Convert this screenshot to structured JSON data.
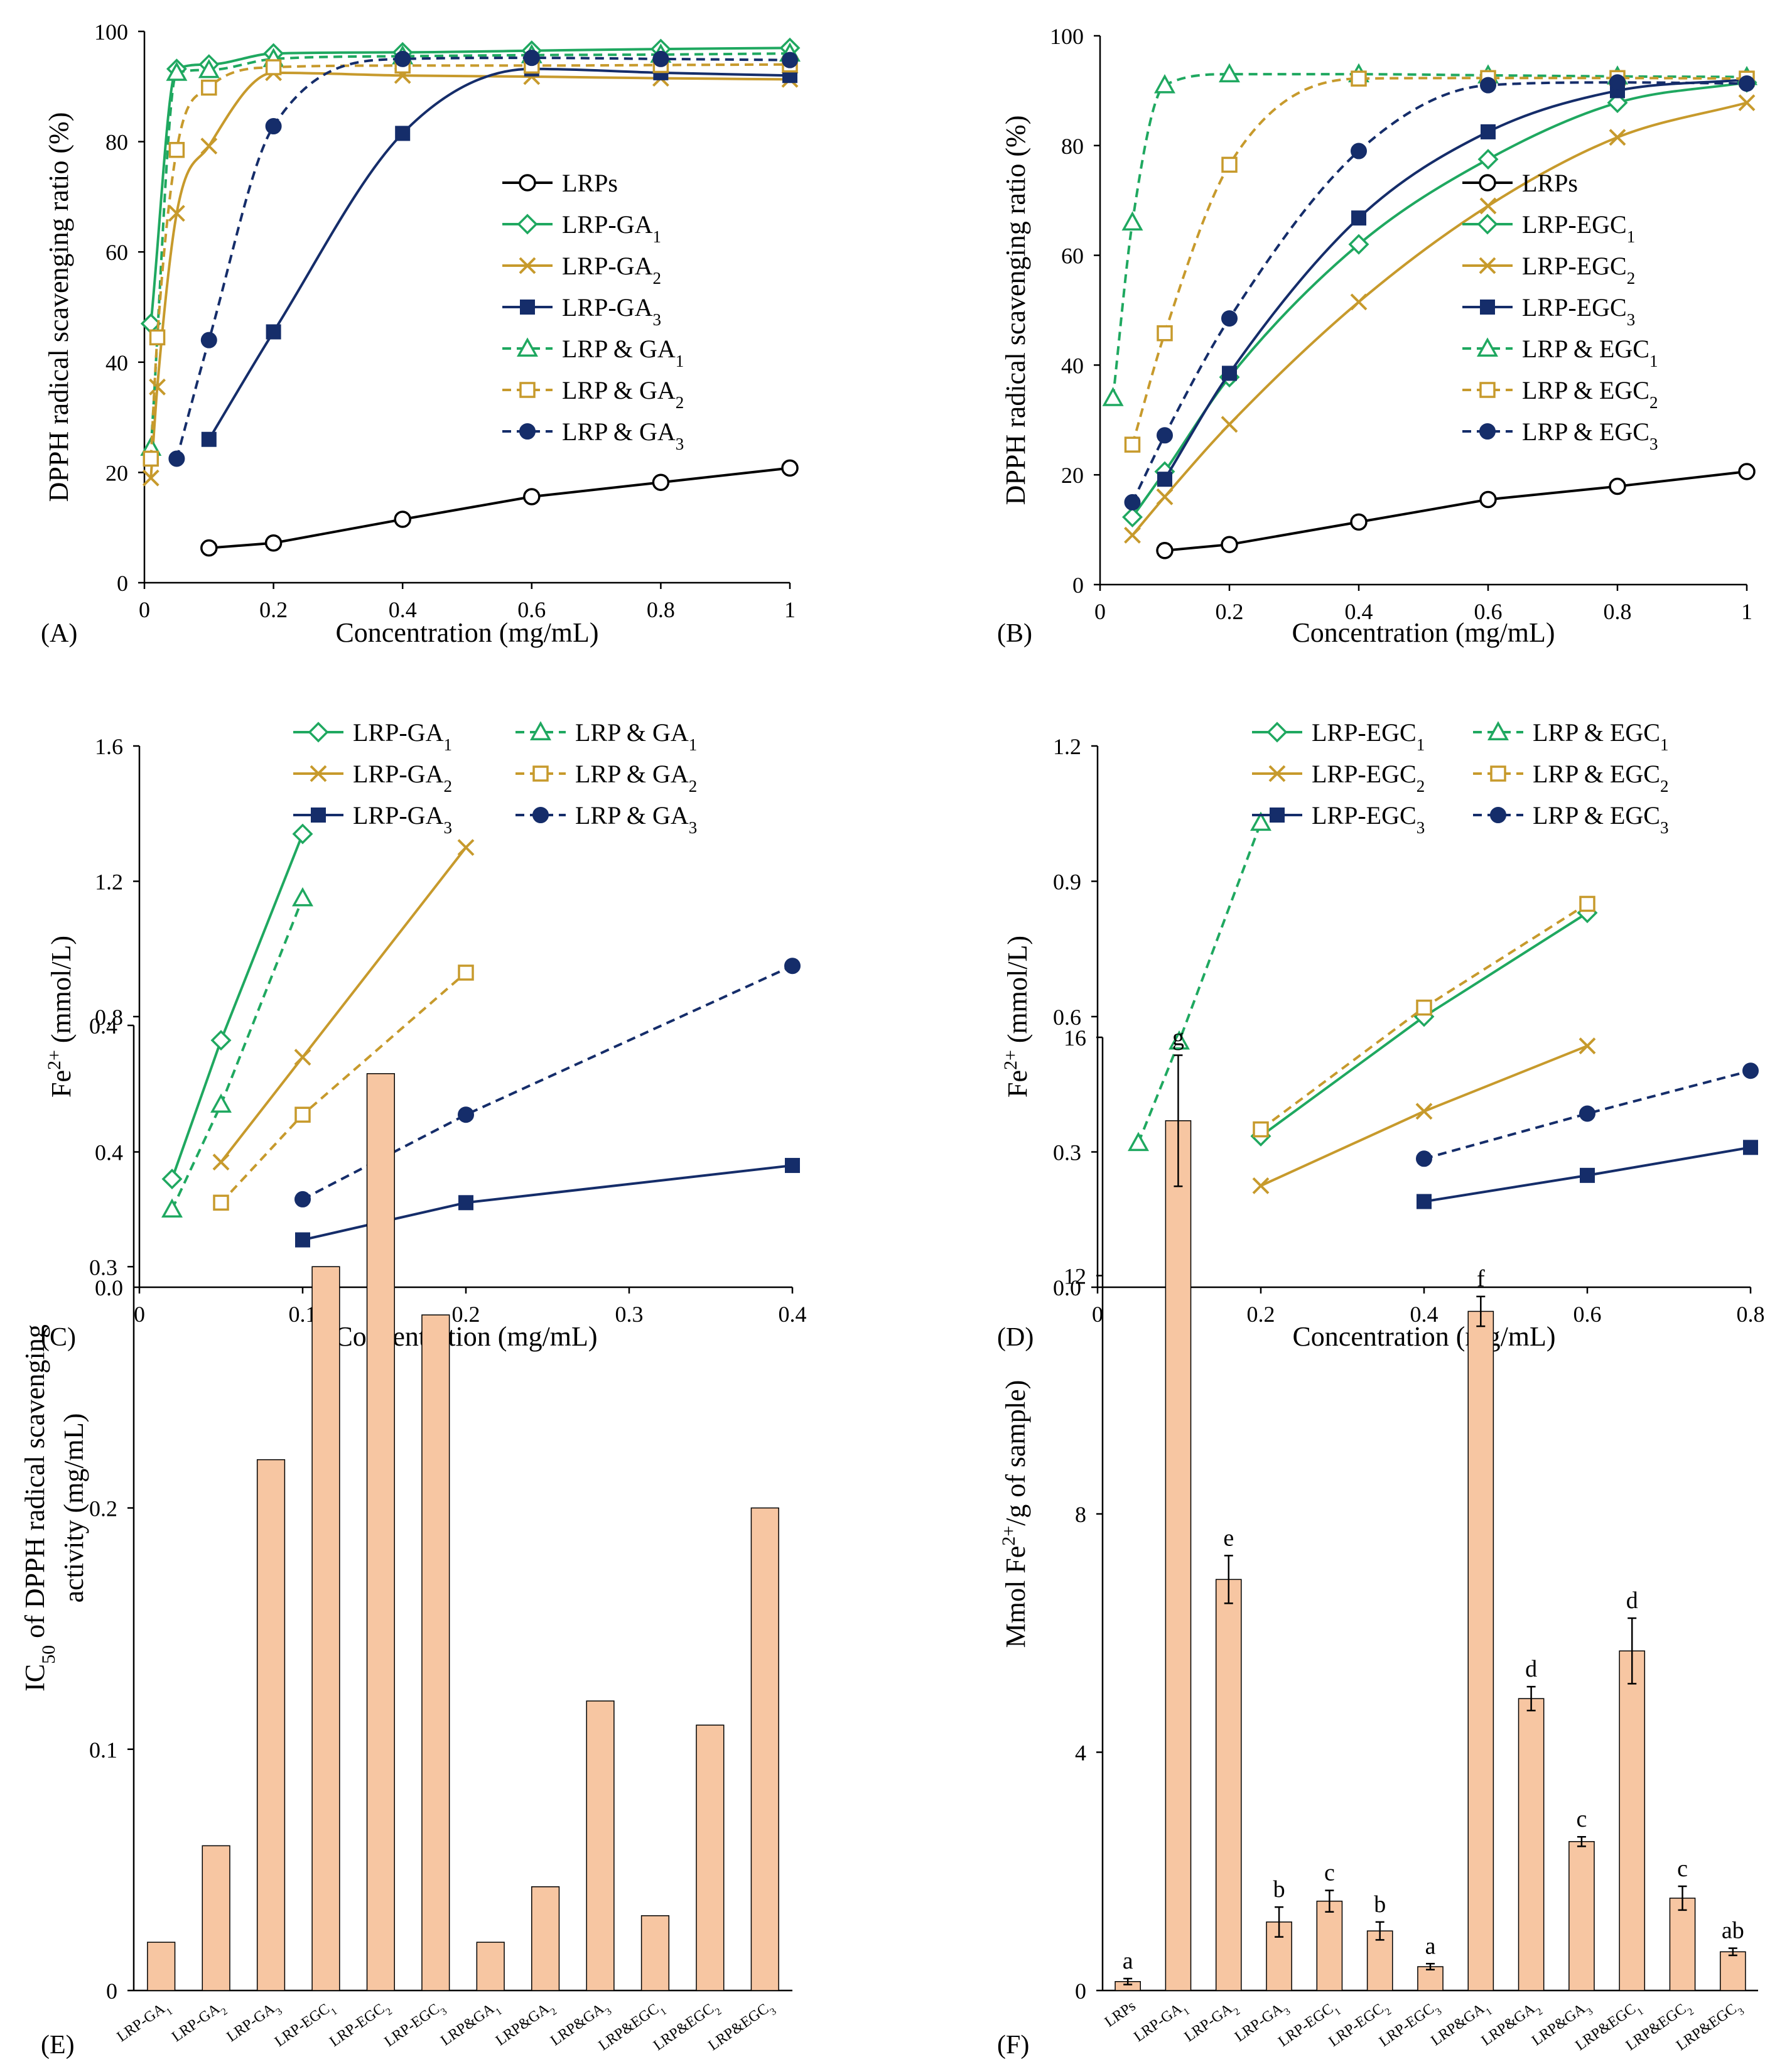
{
  "colors": {
    "black": "#000000",
    "green": "#1FA860",
    "gold": "#C79A2C",
    "navy": "#152D6A",
    "bar_fill": "#F7C6A2",
    "bar_stroke": "#000000"
  },
  "chart_data": [
    {
      "panel": "(A)",
      "type": "line",
      "xlabel": "Concentration (mg/mL)",
      "ylabel": "DPPH radical scavenging ratio (%)",
      "xlim": [
        0,
        1
      ],
      "ylim": [
        0,
        100
      ],
      "xticks": [
        "0",
        "0.2",
        "0.4",
        "0.6",
        "0.8",
        "1"
      ],
      "yticks": [
        "0",
        "20",
        "40",
        "60",
        "80",
        "100"
      ],
      "legend": "right",
      "series": [
        {
          "name": "LRPs",
          "sub": "",
          "color": "#000000",
          "dash": false,
          "marker": "circle-open",
          "curve": "linear",
          "x": [
            0.1,
            0.2,
            0.4,
            0.6,
            0.8,
            1.0
          ],
          "y": [
            6.3,
            7.2,
            11.5,
            15.6,
            18.2,
            20.8
          ]
        },
        {
          "name": "LRP-GA",
          "sub": "1",
          "color": "#1FA860",
          "dash": false,
          "marker": "diamond-open",
          "curve": "smooth",
          "x": [
            0.01,
            0.05,
            0.1,
            0.2,
            0.4,
            0.6,
            0.8,
            1.0
          ],
          "y": [
            47,
            93.2,
            94,
            96,
            96.2,
            96.5,
            96.8,
            97
          ]
        },
        {
          "name": "LRP-GA",
          "sub": "2",
          "color": "#C79A2C",
          "dash": false,
          "marker": "x",
          "curve": "smooth",
          "x": [
            0.01,
            0.02,
            0.05,
            0.1,
            0.2,
            0.4,
            0.6,
            0.8,
            1.0
          ],
          "y": [
            19,
            35.5,
            67,
            79.2,
            92.5,
            92,
            91.8,
            91.5,
            91.3
          ]
        },
        {
          "name": "LRP-GA",
          "sub": "3",
          "color": "#152D6A",
          "dash": false,
          "marker": "square",
          "curve": "smooth",
          "x": [
            0.1,
            0.2,
            0.4,
            0.6,
            0.8,
            1.0
          ],
          "y": [
            26,
            45.5,
            81.5,
            93.2,
            92.5,
            92
          ]
        },
        {
          "name": "LRP & GA",
          "sub": "1",
          "color": "#1FA860",
          "dash": true,
          "marker": "triangle-open",
          "curve": "smooth",
          "x": [
            0.01,
            0.05,
            0.1,
            0.2,
            0.4,
            0.6,
            0.8,
            1.0
          ],
          "y": [
            24.5,
            92.5,
            93,
            95,
            95.5,
            95.7,
            95.8,
            96
          ]
        },
        {
          "name": "LRP & GA",
          "sub": "2",
          "color": "#C79A2C",
          "dash": true,
          "marker": "square-open",
          "curve": "smooth",
          "x": [
            0.01,
            0.02,
            0.05,
            0.1,
            0.2,
            0.4,
            0.6,
            0.8,
            1.0
          ],
          "y": [
            22.5,
            44.5,
            78.5,
            89.8,
            93.5,
            93.8,
            93.8,
            93.9,
            94
          ]
        },
        {
          "name": "LRP & GA",
          "sub": "3",
          "color": "#152D6A",
          "dash": true,
          "marker": "circle",
          "curve": "smooth",
          "x": [
            0.05,
            0.1,
            0.2,
            0.4,
            0.6,
            0.8,
            1.0
          ],
          "y": [
            22.5,
            44,
            82.8,
            95,
            95.2,
            95,
            94.8
          ]
        }
      ]
    },
    {
      "panel": "(B)",
      "type": "line",
      "xlabel": "Concentration (mg/mL)",
      "ylabel": "DPPH radical scavenging ratio (%)",
      "xlim": [
        0,
        1
      ],
      "ylim": [
        0,
        100
      ],
      "xticks": [
        "0",
        "0.2",
        "0.4",
        "0.6",
        "0.8",
        "1"
      ],
      "yticks": [
        "0",
        "20",
        "40",
        "60",
        "80",
        "100"
      ],
      "legend": "right",
      "series": [
        {
          "name": "LRPs",
          "sub": "",
          "color": "#000000",
          "dash": false,
          "marker": "circle-open",
          "curve": "linear",
          "x": [
            0.1,
            0.2,
            0.4,
            0.6,
            0.8,
            1.0
          ],
          "y": [
            6.2,
            7.3,
            11.4,
            15.5,
            17.9,
            20.6
          ]
        },
        {
          "name": "LRP-EGC",
          "sub": "1",
          "color": "#1FA860",
          "dash": false,
          "marker": "diamond-open",
          "curve": "smooth",
          "x": [
            0.05,
            0.1,
            0.2,
            0.4,
            0.6,
            0.8,
            1.0
          ],
          "y": [
            12.3,
            20.6,
            37.8,
            62,
            77.5,
            87.8,
            91.5
          ]
        },
        {
          "name": "LRP-EGC",
          "sub": "2",
          "color": "#C79A2C",
          "dash": false,
          "marker": "x",
          "curve": "smooth",
          "x": [
            0.05,
            0.1,
            0.2,
            0.4,
            0.6,
            0.8,
            1.0
          ],
          "y": [
            9,
            16,
            29.2,
            51.5,
            69,
            81.5,
            87.8
          ]
        },
        {
          "name": "LRP-EGC",
          "sub": "3",
          "color": "#152D6A",
          "dash": false,
          "marker": "square",
          "curve": "smooth",
          "x": [
            0.1,
            0.2,
            0.4,
            0.6,
            0.8,
            1.0
          ],
          "y": [
            19.2,
            38.5,
            66.8,
            82.5,
            90,
            92
          ]
        },
        {
          "name": "LRP & EGC",
          "sub": "1",
          "color": "#1FA860",
          "dash": true,
          "marker": "triangle-open",
          "curve": "smooth",
          "x": [
            0.02,
            0.05,
            0.1,
            0.2,
            0.4,
            0.6,
            0.8,
            1.0
          ],
          "y": [
            34,
            66,
            91,
            93,
            93,
            92.8,
            92.6,
            92.5
          ]
        },
        {
          "name": "LRP & EGC",
          "sub": "2",
          "color": "#C79A2C",
          "dash": true,
          "marker": "square-open",
          "curve": "smooth",
          "x": [
            0.05,
            0.1,
            0.2,
            0.4,
            0.6,
            0.8,
            1.0
          ],
          "y": [
            25.5,
            45.8,
            76.5,
            92.2,
            92.3,
            92.3,
            92.2
          ]
        },
        {
          "name": "LRP & EGC",
          "sub": "3",
          "color": "#152D6A",
          "dash": true,
          "marker": "circle",
          "curve": "smooth",
          "x": [
            0.05,
            0.1,
            0.2,
            0.4,
            0.6,
            0.8,
            1.0
          ],
          "y": [
            15,
            27.2,
            48.5,
            79,
            91,
            91.5,
            91.3
          ]
        }
      ]
    },
    {
      "panel": "(C)",
      "type": "line",
      "xlabel": "Concentration (mg/mL)",
      "ylabel": "Fe",
      "ylabel_sup": "2+",
      "ylabel_rest": " (mmol/L)",
      "xlim": [
        0,
        0.4
      ],
      "ylim": [
        0,
        1.6
      ],
      "xticks": [
        "0",
        "0.1",
        "0.2",
        "0.3",
        "0.4"
      ],
      "yticks": [
        "0.0",
        "0.4",
        "0.8",
        "1.2",
        "1.6"
      ],
      "legend": "top",
      "series": [
        {
          "name": "LRP-GA",
          "sub": "1",
          "color": "#1FA860",
          "dash": false,
          "marker": "diamond-open",
          "curve": "linear",
          "x": [
            0.02,
            0.05,
            0.1
          ],
          "y": [
            0.32,
            0.73,
            1.34
          ]
        },
        {
          "name": "LRP-GA",
          "sub": "2",
          "color": "#C79A2C",
          "dash": false,
          "marker": "x",
          "curve": "linear",
          "x": [
            0.05,
            0.1,
            0.2
          ],
          "y": [
            0.37,
            0.68,
            1.3
          ]
        },
        {
          "name": "LRP-GA",
          "sub": "3",
          "color": "#152D6A",
          "dash": false,
          "marker": "square",
          "curve": "linear",
          "x": [
            0.1,
            0.2,
            0.4
          ],
          "y": [
            0.14,
            0.25,
            0.36
          ]
        },
        {
          "name": "LRP & GA",
          "sub": "1",
          "color": "#1FA860",
          "dash": true,
          "marker": "triangle-open",
          "curve": "linear",
          "x": [
            0.02,
            0.05,
            0.1
          ],
          "y": [
            0.23,
            0.54,
            1.15
          ]
        },
        {
          "name": "LRP & GA",
          "sub": "2",
          "color": "#C79A2C",
          "dash": true,
          "marker": "square-open",
          "curve": "linear",
          "x": [
            0.05,
            0.1,
            0.2
          ],
          "y": [
            0.25,
            0.51,
            0.93
          ]
        },
        {
          "name": "LRP & GA",
          "sub": "3",
          "color": "#152D6A",
          "dash": true,
          "marker": "circle",
          "curve": "linear",
          "x": [
            0.1,
            0.2,
            0.4
          ],
          "y": [
            0.26,
            0.51,
            0.95
          ]
        }
      ]
    },
    {
      "panel": "(D)",
      "type": "line",
      "xlabel": "Concentration (mg/mL)",
      "ylabel": "Fe",
      "ylabel_sup": "2+",
      "ylabel_rest": " (mmol/L)",
      "xlim": [
        0,
        0.8
      ],
      "ylim": [
        0,
        1.2
      ],
      "xticks": [
        "0",
        "0.2",
        "0.4",
        "0.6",
        "0.8"
      ],
      "yticks": [
        "0.0",
        "0.3",
        "0.6",
        "0.9",
        "1.2"
      ],
      "legend": "top",
      "series": [
        {
          "name": "LRP-EGC",
          "sub": "1",
          "color": "#1FA860",
          "dash": false,
          "marker": "diamond-open",
          "curve": "linear",
          "x": [
            0.2,
            0.4,
            0.6
          ],
          "y": [
            0.335,
            0.6,
            0.83
          ]
        },
        {
          "name": "LRP-EGC",
          "sub": "2",
          "color": "#C79A2C",
          "dash": false,
          "marker": "x",
          "curve": "linear",
          "x": [
            0.2,
            0.4,
            0.6
          ],
          "y": [
            0.225,
            0.39,
            0.535
          ]
        },
        {
          "name": "LRP-EGC",
          "sub": "3",
          "color": "#152D6A",
          "dash": false,
          "marker": "square",
          "curve": "linear",
          "x": [
            0.4,
            0.6,
            0.8
          ],
          "y": [
            0.19,
            0.248,
            0.31
          ]
        },
        {
          "name": "LRP & EGC",
          "sub": "1",
          "color": "#1FA860",
          "dash": true,
          "marker": "triangle-open",
          "curve": "linear",
          "x": [
            0.05,
            0.1,
            0.2
          ],
          "y": [
            0.32,
            0.545,
            1.03
          ]
        },
        {
          "name": "LRP & EGC",
          "sub": "2",
          "color": "#C79A2C",
          "dash": true,
          "marker": "square-open",
          "curve": "linear",
          "x": [
            0.2,
            0.4,
            0.6
          ],
          "y": [
            0.35,
            0.62,
            0.85
          ]
        },
        {
          "name": "LRP & EGC",
          "sub": "3",
          "color": "#152D6A",
          "dash": true,
          "marker": "circle",
          "curve": "linear",
          "x": [
            0.4,
            0.6,
            0.8
          ],
          "y": [
            0.285,
            0.385,
            0.48
          ]
        }
      ]
    },
    {
      "panel": "(E)",
      "type": "bar",
      "ylabel_line1": "IC",
      "ylabel_sub": "50",
      "ylabel_line1_rest": " of DPPH radical scavenging",
      "ylabel_line2": "activity (mg/mL)",
      "ylim": [
        0,
        0.4
      ],
      "yticks": [
        "0",
        "0.1",
        "0.2",
        "0.3",
        "0.4"
      ],
      "categories": [
        {
          "base": "LRP-GA",
          "sub": "1"
        },
        {
          "base": "LRP-GA",
          "sub": "2"
        },
        {
          "base": "LRP-GA",
          "sub": "3"
        },
        {
          "base": "LRP-EGC",
          "sub": "1"
        },
        {
          "base": "LRP-EGC",
          "sub": "2"
        },
        {
          "base": "LRP-EGC",
          "sub": "3"
        },
        {
          "base": "LRP&GA",
          "sub": "1"
        },
        {
          "base": "LRP&GA",
          "sub": "2"
        },
        {
          "base": "LRP&GA",
          "sub": "3"
        },
        {
          "base": "LRP&EGC",
          "sub": "1"
        },
        {
          "base": "LRP&EGC",
          "sub": "2"
        },
        {
          "base": "LRP&EGC",
          "sub": "3"
        }
      ],
      "values": [
        0.02,
        0.06,
        0.22,
        0.3,
        0.38,
        0.28,
        0.02,
        0.043,
        0.12,
        0.031,
        0.11,
        0.2
      ]
    },
    {
      "panel": "(F)",
      "type": "bar",
      "ylabel": "Mmol Fe",
      "ylabel_sup": "2+",
      "ylabel_rest": "/g of sample)",
      "ylim": [
        0,
        16
      ],
      "yticks": [
        "0",
        "4",
        "8",
        "12",
        "16"
      ],
      "categories": [
        {
          "base": "LRPs",
          "sub": ""
        },
        {
          "base": "LRP-GA",
          "sub": "1"
        },
        {
          "base": "LRP-GA",
          "sub": "2"
        },
        {
          "base": "LRP-GA",
          "sub": "3"
        },
        {
          "base": "LRP-EGC",
          "sub": "1"
        },
        {
          "base": "LRP-EGC",
          "sub": "2"
        },
        {
          "base": "LRP-EGC",
          "sub": "3"
        },
        {
          "base": "LRP&GA",
          "sub": "1"
        },
        {
          "base": "LRP&GA",
          "sub": "2"
        },
        {
          "base": "LRP&GA",
          "sub": "3"
        },
        {
          "base": "LRP&EGC",
          "sub": "1"
        },
        {
          "base": "LRP&EGC",
          "sub": "2"
        },
        {
          "base": "LRP&EGC",
          "sub": "3"
        }
      ],
      "values": [
        0.15,
        14.6,
        6.9,
        1.15,
        1.5,
        1.0,
        0.4,
        11.4,
        4.9,
        2.5,
        5.7,
        1.55,
        0.65
      ],
      "errors": [
        0.05,
        1.1,
        0.4,
        0.25,
        0.18,
        0.15,
        0.05,
        0.25,
        0.2,
        0.08,
        0.55,
        0.2,
        0.06
      ],
      "letters": [
        "a",
        "g",
        "e",
        "b",
        "c",
        "b",
        "a",
        "f",
        "d",
        "c",
        "d",
        "c",
        "ab"
      ]
    }
  ]
}
